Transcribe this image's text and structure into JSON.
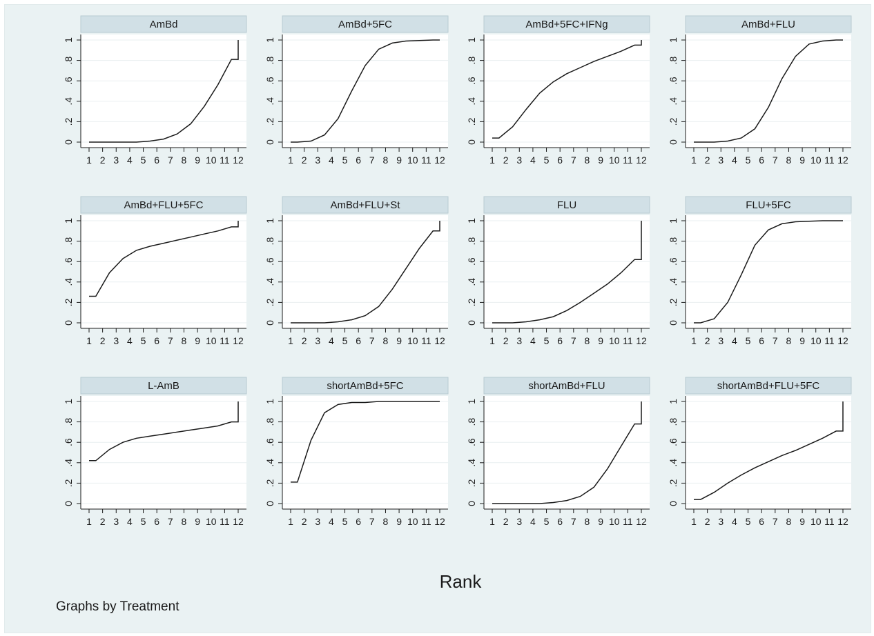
{
  "chart_data": {
    "type": "line",
    "xlabel": "Rank",
    "note": "Graphs by Treatment",
    "x": [
      1,
      2,
      3,
      4,
      5,
      6,
      7,
      8,
      9,
      10,
      11,
      12
    ],
    "xtick_labels": [
      "1",
      "2",
      "3",
      "4",
      "5",
      "6",
      "7",
      "8",
      "9",
      "10",
      "11",
      "12"
    ],
    "ytick_values": [
      0,
      0.2,
      0.4,
      0.6,
      0.8,
      1
    ],
    "ytick_labels": [
      "0",
      ".2",
      ".4",
      ".6",
      ".8",
      "1"
    ],
    "ylim": [
      0,
      1
    ],
    "xlim": [
      1,
      12
    ],
    "panels": [
      {
        "title": "AmBd",
        "values": [
          0,
          0,
          0,
          0,
          0.01,
          0.03,
          0.08,
          0.18,
          0.35,
          0.56,
          0.81,
          1.0
        ]
      },
      {
        "title": "AmBd+5FC",
        "values": [
          0,
          0.01,
          0.07,
          0.23,
          0.5,
          0.75,
          0.91,
          0.97,
          0.99,
          0.995,
          1.0,
          1.0
        ]
      },
      {
        "title": "AmBd+5FC+IFNg",
        "values": [
          0.04,
          0.15,
          0.32,
          0.48,
          0.59,
          0.67,
          0.73,
          0.79,
          0.84,
          0.89,
          0.95,
          1.0
        ]
      },
      {
        "title": "AmBd+FLU",
        "values": [
          0,
          0,
          0.01,
          0.04,
          0.13,
          0.34,
          0.62,
          0.84,
          0.96,
          0.99,
          1.0,
          1.0
        ]
      },
      {
        "title": "AmBd+FLU+5FC",
        "values": [
          0.26,
          0.49,
          0.63,
          0.71,
          0.75,
          0.78,
          0.81,
          0.84,
          0.87,
          0.9,
          0.94,
          1.0
        ]
      },
      {
        "title": "AmBd+FLU+St",
        "values": [
          0,
          0,
          0,
          0.01,
          0.03,
          0.07,
          0.16,
          0.33,
          0.53,
          0.73,
          0.9,
          1.0
        ]
      },
      {
        "title": "FLU",
        "values": [
          0,
          0,
          0.01,
          0.03,
          0.06,
          0.12,
          0.2,
          0.29,
          0.38,
          0.49,
          0.62,
          1.0
        ]
      },
      {
        "title": "FLU+5FC",
        "values": [
          0,
          0.04,
          0.2,
          0.47,
          0.76,
          0.91,
          0.97,
          0.99,
          0.995,
          1.0,
          1.0,
          1.0
        ]
      },
      {
        "title": "L-AmB",
        "values": [
          0.42,
          0.53,
          0.6,
          0.64,
          0.66,
          0.68,
          0.7,
          0.72,
          0.74,
          0.76,
          0.8,
          1.0
        ]
      },
      {
        "title": "shortAmBd+5FC",
        "values": [
          0.21,
          0.62,
          0.89,
          0.97,
          0.99,
          0.99,
          1.0,
          1.0,
          1.0,
          1.0,
          1.0,
          1.0
        ]
      },
      {
        "title": "shortAmBd+FLU",
        "values": [
          0,
          0,
          0,
          0,
          0.01,
          0.03,
          0.07,
          0.16,
          0.34,
          0.56,
          0.78,
          1.0
        ]
      },
      {
        "title": "shortAmBd+FLU+5FC",
        "values": [
          0.04,
          0.11,
          0.2,
          0.28,
          0.35,
          0.41,
          0.47,
          0.52,
          0.58,
          0.64,
          0.71,
          1.0
        ]
      }
    ]
  }
}
